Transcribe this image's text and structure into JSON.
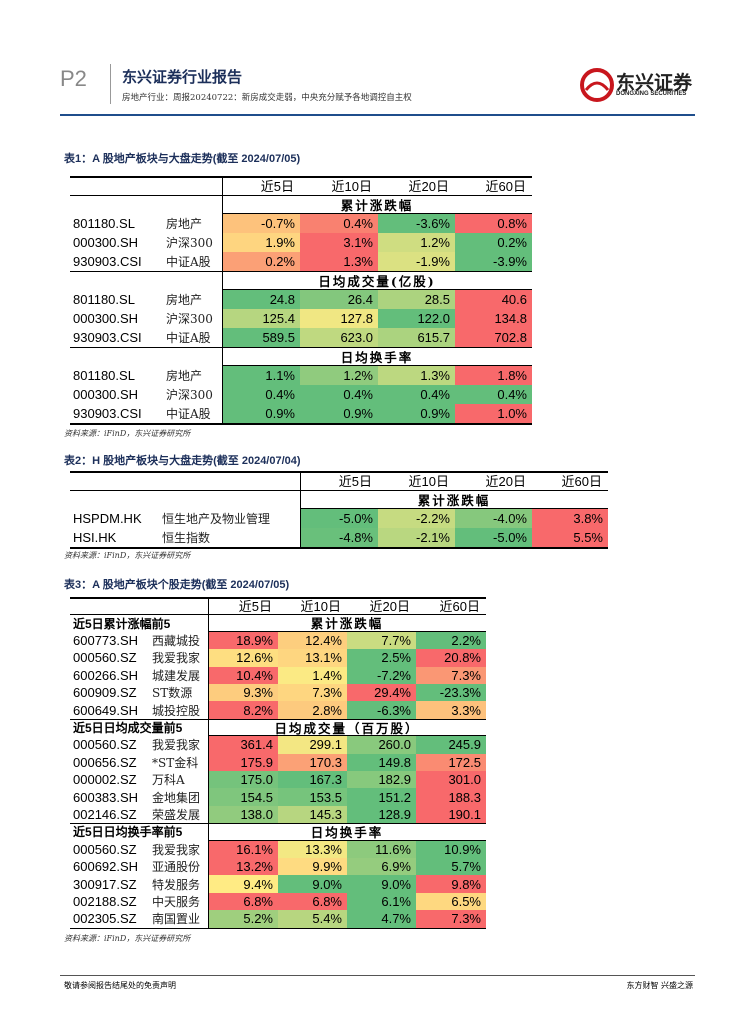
{
  "header": {
    "page": "P2",
    "brand": "东兴证券行业报告",
    "subtitle": "房地产行业：周报20240722：新房成交走弱，中央充分赋予各地调控自主权",
    "logo": "东兴证券",
    "logo_en": "DONGXING SECURITIES"
  },
  "tables": [
    {
      "title": "表1：A 股地产板块与大盘走势(截至 2024/07/05)",
      "columns": [
        "近5日",
        "近10日",
        "近20日",
        "近60日"
      ],
      "sections": [
        {
          "heading": "累计涨跌幅",
          "rows": [
            {
              "code": "801180.SL",
              "name": "房地产",
              "values": [
                "-0.7%",
                "0.4%",
                "-3.6%",
                "0.8%"
              ]
            },
            {
              "code": "000300.SH",
              "name": "沪深300",
              "values": [
                "1.9%",
                "3.1%",
                "1.2%",
                "0.2%"
              ]
            },
            {
              "code": "930903.CSI",
              "name": "中证A股",
              "values": [
                "0.2%",
                "1.3%",
                "-1.9%",
                "-3.9%"
              ]
            }
          ]
        },
        {
          "heading": "日均成交量(亿股)",
          "rows": [
            {
              "code": "801180.SL",
              "name": "房地产",
              "values": [
                "24.8",
                "26.4",
                "28.5",
                "40.6"
              ]
            },
            {
              "code": "000300.SH",
              "name": "沪深300",
              "values": [
                "125.4",
                "127.8",
                "122.0",
                "134.8"
              ]
            },
            {
              "code": "930903.CSI",
              "name": "中证A股",
              "values": [
                "589.5",
                "623.0",
                "615.7",
                "702.8"
              ]
            }
          ]
        },
        {
          "heading": "日均换手率",
          "rows": [
            {
              "code": "801180.SL",
              "name": "房地产",
              "values": [
                "1.1%",
                "1.2%",
                "1.3%",
                "1.8%"
              ]
            },
            {
              "code": "000300.SH",
              "name": "沪深300",
              "values": [
                "0.4%",
                "0.4%",
                "0.4%",
                "0.4%"
              ]
            },
            {
              "code": "930903.CSI",
              "name": "中证A股",
              "values": [
                "0.9%",
                "0.9%",
                "0.9%",
                "1.0%"
              ]
            }
          ]
        }
      ],
      "source": "资料来源：iFinD，东兴证券研究所"
    },
    {
      "title": "表2：H 股地产板块与大盘走势(截至 2024/07/04)",
      "columns": [
        "近5日",
        "近10日",
        "近20日",
        "近60日"
      ],
      "sections": [
        {
          "heading": "累计涨跌幅",
          "rows": [
            {
              "code": "HSPDM.HK",
              "name": "恒生地产及物业管理",
              "values": [
                "-5.0%",
                "-2.2%",
                "-4.0%",
                "3.8%"
              ]
            },
            {
              "code": "HSI.HK",
              "name": "恒生指数",
              "values": [
                "-4.8%",
                "-2.1%",
                "-5.0%",
                "5.5%"
              ]
            }
          ]
        }
      ],
      "source": "资料来源：iFinD，东兴证券研究所"
    },
    {
      "title": "表3：A 股地产板块个股走势(截至 2024/07/05)",
      "columns": [
        "近5日",
        "近10日",
        "近20日",
        "近60日"
      ],
      "sections": [
        {
          "label": "近5日累计涨幅前5",
          "heading": "累计涨跌幅",
          "rows": [
            {
              "code": "600773.SH",
              "name": "西藏城投",
              "values": [
                "18.9%",
                "12.4%",
                "7.7%",
                "2.2%"
              ]
            },
            {
              "code": "000560.SZ",
              "name": "我爱我家",
              "values": [
                "12.6%",
                "13.1%",
                "2.5%",
                "20.8%"
              ]
            },
            {
              "code": "600266.SH",
              "name": "城建发展",
              "values": [
                "10.4%",
                "1.4%",
                "-7.2%",
                "7.3%"
              ]
            },
            {
              "code": "600909.SZ",
              "name": "ST数源",
              "values": [
                "9.3%",
                "7.3%",
                "29.4%",
                "-23.3%"
              ]
            },
            {
              "code": "600649.SH",
              "name": "城投控股",
              "values": [
                "8.2%",
                "2.8%",
                "-6.3%",
                "3.3%"
              ]
            }
          ]
        },
        {
          "label": "近5日日均成交量前5",
          "heading": "日均成交量（百万股）",
          "rows": [
            {
              "code": "000560.SZ",
              "name": "我爱我家",
              "values": [
                "361.4",
                "299.1",
                "260.0",
                "245.9"
              ]
            },
            {
              "code": "000656.SZ",
              "name": "*ST金科",
              "values": [
                "175.9",
                "170.3",
                "149.8",
                "172.5"
              ]
            },
            {
              "code": "000002.SZ",
              "name": "万科A",
              "values": [
                "175.0",
                "167.3",
                "182.9",
                "301.0"
              ]
            },
            {
              "code": "600383.SH",
              "name": "金地集团",
              "values": [
                "154.5",
                "153.5",
                "151.2",
                "188.3"
              ]
            },
            {
              "code": "002146.SZ",
              "name": "荣盛发展",
              "values": [
                "138.0",
                "145.3",
                "128.9",
                "190.1"
              ]
            }
          ]
        },
        {
          "label": "近5日日均换手率前5",
          "heading": "日均换手率",
          "rows": [
            {
              "code": "000560.SZ",
              "name": "我爱我家",
              "values": [
                "16.1%",
                "13.3%",
                "11.6%",
                "10.9%"
              ]
            },
            {
              "code": "600692.SH",
              "name": "亚通股份",
              "values": [
                "13.2%",
                "9.9%",
                "6.9%",
                "5.7%"
              ]
            },
            {
              "code": "300917.SZ",
              "name": "特发服务",
              "values": [
                "9.4%",
                "9.0%",
                "9.0%",
                "9.8%"
              ]
            },
            {
              "code": "002188.SZ",
              "name": "中天服务",
              "values": [
                "6.8%",
                "6.8%",
                "6.1%",
                "6.5%"
              ]
            },
            {
              "code": "002305.SZ",
              "name": "南国置业",
              "values": [
                "5.2%",
                "5.4%",
                "4.7%",
                "7.3%"
              ]
            }
          ]
        }
      ],
      "source": "资料来源：iFinD，东兴证券研究所"
    }
  ],
  "footer": {
    "left": "敬请参阅报告结尾处的免责声明",
    "right": "东方财智 兴盛之源"
  }
}
